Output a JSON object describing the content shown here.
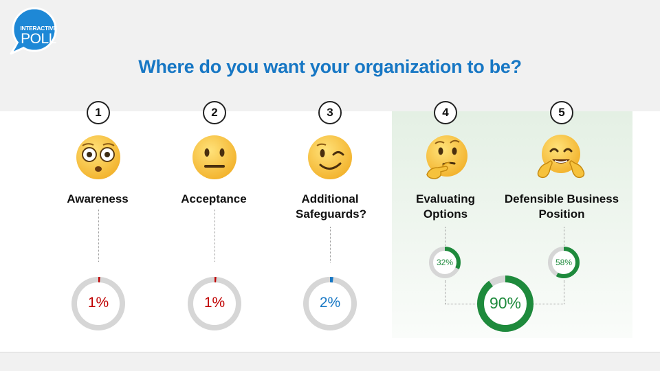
{
  "badge": {
    "line1": "INTERACTIVE",
    "line2": "POLL"
  },
  "title": "Where do you want your organization to be?",
  "options": [
    {
      "number": "1",
      "label": "Awareness",
      "emoji_icon": "flushed-face-icon"
    },
    {
      "number": "2",
      "label": "Acceptance",
      "emoji_icon": "neutral-face-icon"
    },
    {
      "number": "3",
      "label": "Additional Safeguards?",
      "emoji_icon": "winking-face-icon"
    },
    {
      "number": "4",
      "label": "Evaluating Options",
      "emoji_icon": "thinking-face-icon"
    },
    {
      "number": "5",
      "label": "Defensible Business Position",
      "emoji_icon": "hugging-face-icon"
    }
  ],
  "results": [
    {
      "label": "1%",
      "value": 1,
      "color": "#c00000"
    },
    {
      "label": "1%",
      "value": 1,
      "color": "#c00000"
    },
    {
      "label": "2%",
      "value": 2,
      "color": "#1777c4"
    },
    {
      "label": "32%",
      "value": 32,
      "color": "#1e8a3c"
    },
    {
      "label": "58%",
      "value": 58,
      "color": "#1e8a3c"
    }
  ],
  "combined": {
    "label": "90%",
    "value": 90,
    "color": "#1e8a3c"
  },
  "colors": {
    "title": "#1777c4",
    "badge": "#1e88d6",
    "track": "#d6d6d6"
  }
}
